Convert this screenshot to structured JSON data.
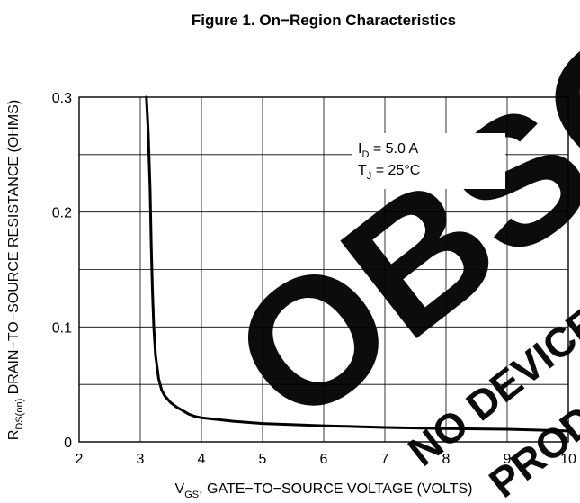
{
  "chart_data": {
    "type": "line",
    "title": "Figure 1. On−Region Characteristics",
    "xlabel": {
      "prefix": "V",
      "sub": "GS",
      "text": ", GATE−TO−SOURCE VOLTAGE (VOLTS)"
    },
    "ylabel": {
      "prefix": "R",
      "sub": "DS(on)",
      "text": " DRAIN−TO−SOURCE RESISTANCE (OHMS)"
    },
    "xlim": [
      2,
      10
    ],
    "ylim": [
      0,
      0.3
    ],
    "x_ticks": [
      2,
      3,
      4,
      5,
      6,
      7,
      8,
      9,
      10
    ],
    "x_tick_labels": [
      "2",
      "3",
      "4",
      "5",
      "6",
      "7",
      "8",
      "9",
      "10"
    ],
    "y_ticks": [
      0,
      0.1,
      0.2,
      0.3
    ],
    "y_tick_labels": [
      "0",
      "0.1",
      "0.2",
      "0.3"
    ],
    "y_gridlines": [
      0,
      0.05,
      0.1,
      0.15,
      0.2,
      0.25,
      0.3
    ],
    "grid": true,
    "annotations": [
      {
        "prefix": "I",
        "sub": "D",
        "text": " = 5.0 A"
      },
      {
        "prefix": "T",
        "sub": "J",
        "text": " = 25°C"
      }
    ],
    "series": [
      {
        "x": [
          3.1,
          3.13,
          3.16,
          3.18,
          3.2,
          3.22,
          3.25,
          3.3,
          3.35,
          3.4,
          3.5,
          3.6,
          3.7,
          3.8,
          3.9,
          4.0,
          4.5,
          5.0,
          6.0,
          7.0,
          8.0,
          9.0,
          10.0
        ],
        "y": [
          0.3,
          0.27,
          0.22,
          0.17,
          0.13,
          0.1,
          0.075,
          0.055,
          0.045,
          0.04,
          0.034,
          0.03,
          0.027,
          0.024,
          0.022,
          0.021,
          0.018,
          0.016,
          0.014,
          0.0125,
          0.0115,
          0.011,
          0.0095
        ]
      }
    ]
  },
  "watermark": {
    "large_text": "OBSOLETE",
    "small_text_1": "NO DEVICE",
    "small_text_2": "PRODUCT"
  },
  "colors": {
    "line": "#000000",
    "grid": "#000000",
    "watermark": "#000000"
  }
}
